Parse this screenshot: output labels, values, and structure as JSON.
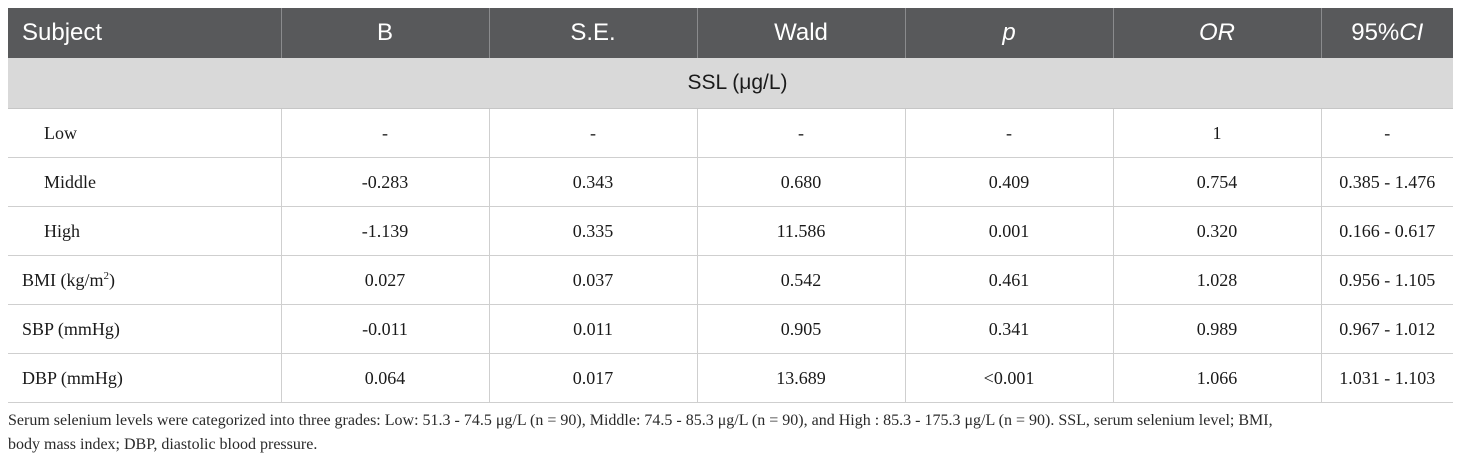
{
  "table": {
    "headers": [
      "Subject",
      "B",
      "S.E.",
      "Wald",
      "p",
      "OR",
      "95%CI"
    ],
    "group_label": "SSL (μg/L)",
    "rows": [
      {
        "subject": "Low",
        "b": "-",
        "se": "-",
        "wald": "-",
        "p": "-",
        "or": "1",
        "ci": "-"
      },
      {
        "subject": "Middle",
        "b": "-0.283",
        "se": "0.343",
        "wald": "0.680",
        "p": "0.409",
        "or": "0.754",
        "ci": "0.385 - 1.476"
      },
      {
        "subject": "High",
        "b": "-1.139",
        "se": "0.335",
        "wald": "11.586",
        "p": "0.001",
        "or": "0.320",
        "ci": "0.166 - 0.617"
      },
      {
        "subject": "BMI (kg/m",
        "subject_sup": "2",
        "subject_suffix": ")",
        "b": "0.027",
        "se": "0.037",
        "wald": "0.542",
        "p": "0.461",
        "or": "1.028",
        "ci": "0.956 - 1.105"
      },
      {
        "subject": "SBP (mmHg)",
        "b": "-0.011",
        "se": "0.011",
        "wald": "0.905",
        "p": "0.341",
        "or": "0.989",
        "ci": "0.967 - 1.012"
      },
      {
        "subject": "DBP (mmHg)",
        "b": "0.064",
        "se": "0.017",
        "wald": "13.689",
        "p": "<0.001",
        "or": "1.066",
        "ci": "1.031 - 1.103"
      }
    ]
  },
  "footnote": {
    "line1": "Serum selenium levels were categorized into three grades: Low: 51.3 - 74.5 μg/L (n = 90), Middle: 74.5 - 85.3 μg/L (n = 90), and High : 85.3 - 175.3 μg/L (n = 90). SSL, serum selenium level; BMI,",
    "line2": "body mass index; DBP, diastolic blood pressure."
  }
}
